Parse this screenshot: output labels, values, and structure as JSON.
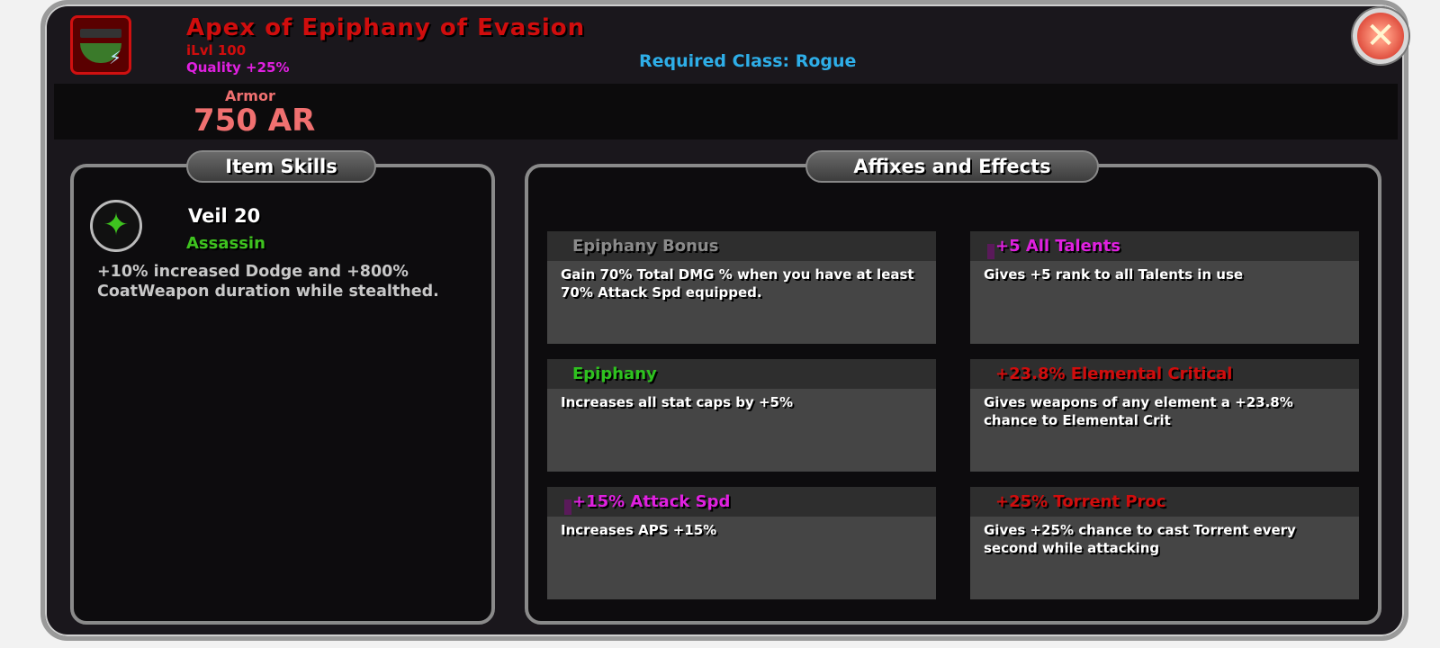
{
  "item": {
    "name": "Apex of Epiphany of Evasion",
    "ilvl": "iLvl 100",
    "quality": "Quality +25%",
    "required_class": "Required Class: Rogue",
    "stat_label": "Armor",
    "stat_value": "750 AR",
    "icon": "helmet-icon",
    "name_color": "#d00d0d"
  },
  "close_icon": "✕",
  "skills_panel": {
    "title": "Item Skills",
    "skill": {
      "icon": "shuriken-icon",
      "name": "Veil 20",
      "class": "Assassin",
      "description": "+10% increased Dodge and +800% CoatWeapon duration while stealthed."
    }
  },
  "affixes_panel": {
    "title": "Affixes and Effects",
    "cards": [
      {
        "title": "Epiphany Bonus",
        "color": "#8a8a8a",
        "gem": false,
        "text": "Gain 70% Total DMG % when you have at least 70% Attack Spd equipped."
      },
      {
        "title": "+5 All Talents",
        "color": "#e020e0",
        "gem": true,
        "text": "Gives +5 rank to all Talents in use"
      },
      {
        "title": "Epiphany",
        "color": "#2ec21f",
        "gem": false,
        "text": "Increases all stat caps by +5%"
      },
      {
        "title": "+23.8% Elemental Critical",
        "color": "#d00d0d",
        "gem": false,
        "text": "Gives weapons of any element a +23.8% chance to Elemental Crit"
      },
      {
        "title": "+15% Attack Spd",
        "color": "#e020e0",
        "gem": true,
        "text": "Increases APS +15%"
      },
      {
        "title": "+25% Torrent Proc",
        "color": "#d00d0d",
        "gem": false,
        "text": "Gives +25% chance to cast Torrent every second while attacking"
      }
    ]
  }
}
